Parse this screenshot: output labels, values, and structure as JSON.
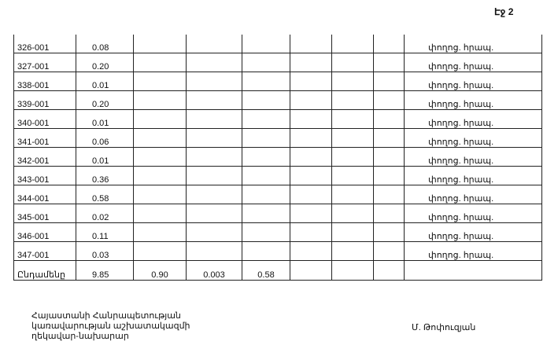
{
  "page_label": "Էջ 2",
  "rows": [
    {
      "id": "326-001",
      "value": "0.08",
      "note": "փողոց. հրապ."
    },
    {
      "id": "327-001",
      "value": "0.20",
      "note": "փողոց. հրապ."
    },
    {
      "id": "338-001",
      "value": "0.01",
      "note": "փողոց. հրապ."
    },
    {
      "id": "339-001",
      "value": "0.20",
      "note": "փողոց. հրապ."
    },
    {
      "id": "340-001",
      "value": "0.01",
      "note": "փողոց. հրապ."
    },
    {
      "id": "341-001",
      "value": "0.06",
      "note": "փողոց. հրապ."
    },
    {
      "id": "342-001",
      "value": "0.01",
      "note": "փողոց. հրապ."
    },
    {
      "id": "343-001",
      "value": "0.36",
      "note": "փողոց. հրապ."
    },
    {
      "id": "344-001",
      "value": "0.58",
      "note": "փողոց. հրապ."
    },
    {
      "id": "345-001",
      "value": "0.02",
      "note": "փողոց. հրապ."
    },
    {
      "id": "346-001",
      "value": "0.11",
      "note": "փողոց. հրապ."
    },
    {
      "id": "347-001",
      "value": "0.03",
      "note": "փողոց. հրապ."
    }
  ],
  "total": {
    "label": "Ընդամենը",
    "values": [
      "9.85",
      "0.90",
      "0.003",
      "0.58"
    ]
  },
  "footer": {
    "title_lines": [
      "Հայաստանի Հանրապետության",
      "կառավարության աշխատակազմի",
      "ղեկավար-նախարար"
    ],
    "signatory": "Մ. Թոփուզյան"
  }
}
